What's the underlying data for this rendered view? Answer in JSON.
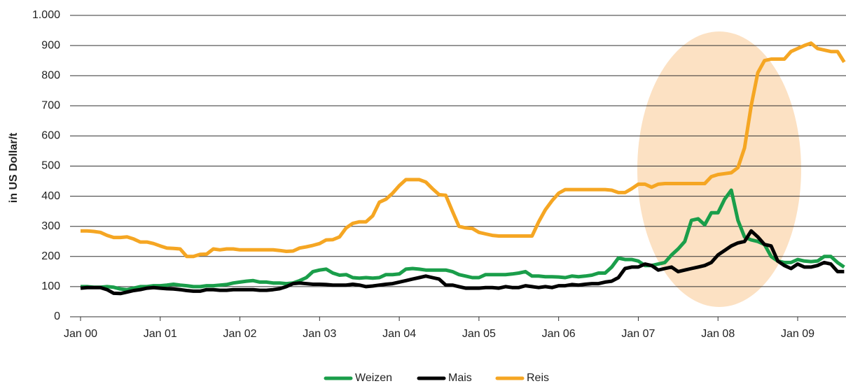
{
  "chart_data": {
    "type": "line",
    "ylabel": "in US Dollar/t",
    "categories": [
      "Jan 00",
      null,
      null,
      null,
      null,
      null,
      null,
      null,
      null,
      null,
      null,
      null,
      "Jan 01",
      null,
      null,
      null,
      null,
      null,
      null,
      null,
      null,
      null,
      null,
      null,
      "Jan 02",
      null,
      null,
      null,
      null,
      null,
      null,
      null,
      null,
      null,
      null,
      null,
      "Jan 03",
      null,
      null,
      null,
      null,
      null,
      null,
      null,
      null,
      null,
      null,
      null,
      "Jan 04",
      null,
      null,
      null,
      null,
      null,
      null,
      null,
      null,
      null,
      null,
      null,
      "Jan 05",
      null,
      null,
      null,
      null,
      null,
      null,
      null,
      null,
      null,
      null,
      null,
      "Jan 06",
      null,
      null,
      null,
      null,
      null,
      null,
      null,
      null,
      null,
      null,
      null,
      "Jan 07",
      null,
      null,
      null,
      null,
      null,
      null,
      null,
      null,
      null,
      null,
      null,
      "Jan 08",
      null,
      null,
      null,
      null,
      null,
      null,
      null,
      null,
      null,
      null,
      null,
      "Jan 09",
      null,
      null,
      null,
      null,
      null,
      null,
      null
    ],
    "series": [
      {
        "name": "Weizen",
        "color": "#1a9e4a",
        "values": [
          100,
          100,
          98,
          98,
          100,
          98,
          92,
          90,
          95,
          100,
          100,
          103,
          103,
          105,
          108,
          105,
          103,
          100,
          100,
          103,
          103,
          105,
          107,
          112,
          115,
          118,
          120,
          115,
          115,
          112,
          112,
          110,
          112,
          120,
          130,
          150,
          155,
          158,
          145,
          138,
          140,
          130,
          128,
          130,
          128,
          130,
          140,
          140,
          142,
          158,
          160,
          158,
          155,
          155,
          155,
          155,
          150,
          140,
          135,
          130,
          130,
          140,
          140,
          140,
          140,
          142,
          145,
          150,
          135,
          135,
          133,
          133,
          132,
          130,
          135,
          133,
          135,
          138,
          145,
          145,
          165,
          195,
          190,
          190,
          185,
          170,
          170,
          175,
          180,
          205,
          225,
          250,
          320,
          325,
          305,
          345,
          345,
          390,
          420,
          320,
          265,
          255,
          250,
          240,
          200,
          185,
          180,
          180,
          190,
          185,
          183,
          185,
          200,
          200,
          180,
          165
        ]
      },
      {
        "name": "Mais",
        "color": "#000000",
        "values": [
          95,
          97,
          97,
          97,
          90,
          78,
          77,
          82,
          87,
          90,
          95,
          97,
          95,
          93,
          92,
          90,
          87,
          85,
          85,
          90,
          90,
          88,
          88,
          90,
          90,
          90,
          90,
          88,
          88,
          90,
          93,
          100,
          110,
          112,
          110,
          108,
          108,
          107,
          105,
          105,
          105,
          108,
          105,
          100,
          102,
          105,
          108,
          110,
          115,
          120,
          125,
          130,
          135,
          130,
          125,
          105,
          105,
          100,
          95,
          95,
          95,
          97,
          97,
          95,
          100,
          97,
          97,
          103,
          100,
          97,
          100,
          97,
          103,
          103,
          107,
          105,
          108,
          110,
          110,
          115,
          118,
          130,
          160,
          165,
          165,
          175,
          170,
          155,
          160,
          165,
          150,
          155,
          160,
          165,
          170,
          180,
          205,
          220,
          235,
          245,
          250,
          285,
          265,
          240,
          235,
          185,
          170,
          160,
          175,
          165,
          165,
          170,
          180,
          175,
          150,
          150
        ]
      },
      {
        "name": "Reis",
        "color": "#f5a623",
        "values": [
          285,
          285,
          283,
          280,
          270,
          263,
          263,
          265,
          258,
          248,
          248,
          243,
          235,
          228,
          227,
          225,
          200,
          200,
          207,
          208,
          225,
          222,
          225,
          225,
          222,
          222,
          222,
          222,
          222,
          222,
          220,
          217,
          218,
          228,
          232,
          237,
          243,
          255,
          256,
          265,
          295,
          310,
          315,
          315,
          335,
          380,
          390,
          410,
          435,
          455,
          455,
          455,
          447,
          425,
          405,
          403,
          350,
          300,
          295,
          293,
          280,
          275,
          270,
          268,
          268,
          268,
          268,
          268,
          268,
          315,
          355,
          385,
          410,
          422,
          422,
          422,
          422,
          422,
          422,
          422,
          420,
          412,
          412,
          425,
          440,
          440,
          430,
          440,
          442,
          442,
          442,
          442,
          442,
          442,
          442,
          465,
          472,
          475,
          478,
          495,
          560,
          700,
          810,
          850,
          855,
          855,
          855,
          880,
          890,
          900,
          908,
          890,
          885,
          880,
          880,
          845
        ]
      }
    ],
    "ylim": [
      0,
      1000
    ],
    "yticks": [
      0,
      100,
      200,
      300,
      400,
      500,
      600,
      700,
      800,
      900,
      {
        "value": 1000,
        "label": "1.000"
      }
    ],
    "grid": true,
    "legend": "bottom"
  }
}
